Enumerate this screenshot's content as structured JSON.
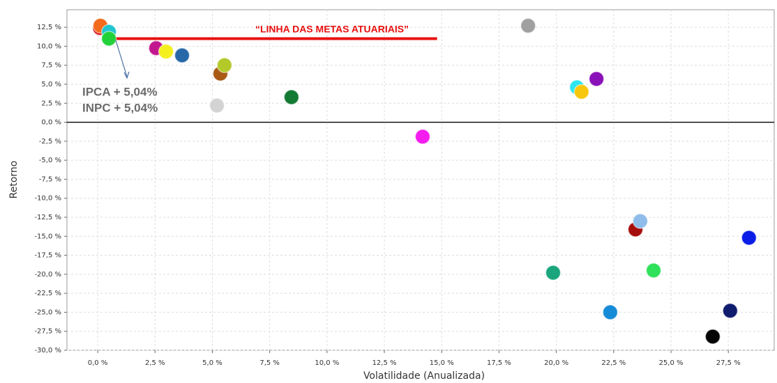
{
  "chart_data": {
    "type": "scatter",
    "x_label": "Volatilidade (Anualizada)",
    "y_label": "Retorno",
    "x": [
      0.1,
      0.12,
      0.49,
      0.49,
      2.55,
      2.98,
      3.68,
      5.35,
      5.53,
      5.2,
      8.45,
      18.77,
      20.9,
      21.1,
      21.75,
      14.17,
      23.45,
      23.66,
      28.4,
      19.86,
      24.24,
      22.35,
      27.58,
      26.82
    ],
    "values": [
      12.4,
      12.7,
      11.9,
      11.0,
      9.75,
      9.3,
      8.8,
      6.4,
      7.5,
      2.2,
      3.3,
      12.7,
      4.6,
      4.0,
      5.7,
      -1.9,
      -14.1,
      -13.0,
      -15.2,
      -19.8,
      -19.5,
      -25.0,
      -24.8,
      -28.2
    ],
    "colors": [
      "#d81a1a",
      "#f26a1b",
      "#1fc6cf",
      "#22d13a",
      "#c2188f",
      "#f4ef1f",
      "#2868a8",
      "#a85a14",
      "#b3c92a",
      "#d3d3d3",
      "#137a33",
      "#a0a0a0",
      "#2de5f0",
      "#f7c70d",
      "#8a10b8",
      "#f51cf0",
      "#a60d0d",
      "#8fbdeb",
      "#0a1ee8",
      "#1aa57d",
      "#2fe05a",
      "#168bd8",
      "#101c6e",
      "#050505"
    ],
    "xlim": [
      -1.34,
      29.5
    ],
    "ylim": [
      -30,
      14.8
    ],
    "xticks": [
      {
        "value": 0,
        "label": "0,0 %"
      },
      {
        "value": 2.5,
        "label": "2,5 %"
      },
      {
        "value": 5,
        "label": "5,0 %"
      },
      {
        "value": 7.5,
        "label": "7,5 %"
      },
      {
        "value": 10,
        "label": "10,0 %"
      },
      {
        "value": 12.5,
        "label": "12,5 %"
      },
      {
        "value": 15,
        "label": "15,0 %"
      },
      {
        "value": 17.5,
        "label": "17,5 %"
      },
      {
        "value": 20,
        "label": "20,0 %"
      },
      {
        "value": 22.5,
        "label": "22,5 %"
      },
      {
        "value": 25,
        "label": "25,0 %"
      },
      {
        "value": 27.5,
        "label": "27,5 %"
      }
    ],
    "yticks": [
      {
        "value": 12.5,
        "label": "12,5 %"
      },
      {
        "value": 10,
        "label": "10,0 %"
      },
      {
        "value": 7.5,
        "label": "7,5 %"
      },
      {
        "value": 5,
        "label": "5,0 %"
      },
      {
        "value": 2.5,
        "label": "2,5 %"
      },
      {
        "value": 0,
        "label": "0,0 %"
      },
      {
        "value": -2.5,
        "label": "-2,5 %"
      },
      {
        "value": -5,
        "label": "-5,0 %"
      },
      {
        "value": -7.5,
        "label": "-7,5 %"
      },
      {
        "value": -10,
        "label": "-10,0 %"
      },
      {
        "value": -12.5,
        "label": "-12,5 %"
      },
      {
        "value": -15,
        "label": "-15,0 %"
      },
      {
        "value": -17.5,
        "label": "-17,5 %"
      },
      {
        "value": -20,
        "label": "-20,0 %"
      },
      {
        "value": -22.5,
        "label": "-22,5 %"
      },
      {
        "value": -25,
        "label": "-25,0 %"
      },
      {
        "value": -27.5,
        "label": "-27,5 %"
      },
      {
        "value": -30,
        "label": "-30,0 %"
      }
    ],
    "grid": true,
    "target_line": {
      "label": "“LINHA DAS METAS ATUARIAIS”",
      "y": 11,
      "x": [
        0.4,
        14.8
      ],
      "color": "#e81010"
    },
    "annotations": [
      "IPCA + 5,04%",
      "INPC + 5,04%"
    ]
  }
}
